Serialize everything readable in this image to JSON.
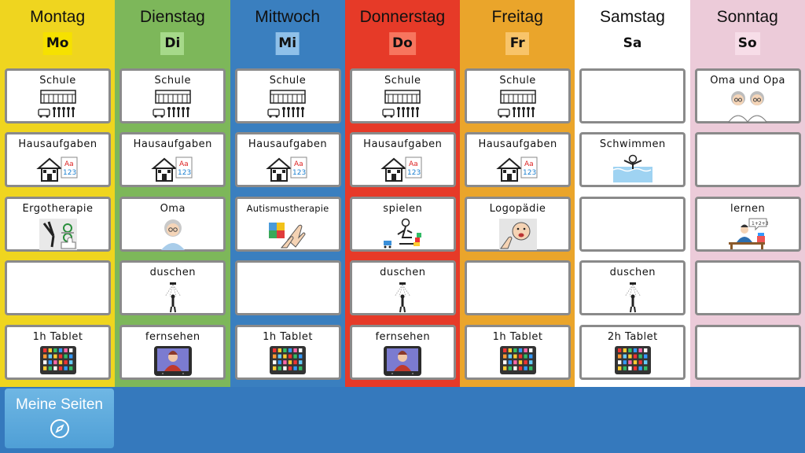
{
  "days": [
    {
      "name": "Montag",
      "abbr": "Mo",
      "bg": "#efd51f",
      "abbr_bg": "#f6e100",
      "cells": [
        {
          "label": "Schule",
          "icon": "school-bus-icon"
        },
        {
          "label": "Hausaufgaben",
          "icon": "homework-icon"
        },
        {
          "label": "Ergotherapie",
          "icon": "occupational-therapy-icon"
        },
        {
          "label": "",
          "icon": ""
        },
        {
          "label": "1h Tablet",
          "icon": "tablet-icon"
        }
      ]
    },
    {
      "name": "Dienstag",
      "abbr": "Di",
      "bg": "#7db75a",
      "abbr_bg": "#a6d98a",
      "cells": [
        {
          "label": "Schule",
          "icon": "school-bus-icon"
        },
        {
          "label": "Hausaufgaben",
          "icon": "homework-icon"
        },
        {
          "label": "Oma",
          "icon": "grandmother-icon"
        },
        {
          "label": "duschen",
          "icon": "shower-icon"
        },
        {
          "label": "fernsehen",
          "icon": "tv-icon"
        }
      ]
    },
    {
      "name": "Mittwoch",
      "abbr": "Mi",
      "bg": "#3a7fbf",
      "abbr_bg": "#8fc0e9",
      "cells": [
        {
          "label": "Schule",
          "icon": "school-bus-icon"
        },
        {
          "label": "Hausaufgaben",
          "icon": "homework-icon"
        },
        {
          "label": "Autismustherapie",
          "icon": "puzzle-hands-icon"
        },
        {
          "label": "",
          "icon": ""
        },
        {
          "label": "1h Tablet",
          "icon": "tablet-icon"
        }
      ]
    },
    {
      "name": "Donnerstag",
      "abbr": "Do",
      "bg": "#e63a28",
      "abbr_bg": "#f7755e",
      "cells": [
        {
          "label": "Schule",
          "icon": "school-bus-icon"
        },
        {
          "label": "Hausaufgaben",
          "icon": "homework-icon"
        },
        {
          "label": "spielen",
          "icon": "playing-child-icon"
        },
        {
          "label": "duschen",
          "icon": "shower-icon"
        },
        {
          "label": "fernsehen",
          "icon": "tv-icon"
        }
      ]
    },
    {
      "name": "Freitag",
      "abbr": "Fr",
      "bg": "#eaa52b",
      "abbr_bg": "#f8c46a",
      "cells": [
        {
          "label": "Schule",
          "icon": "school-bus-icon"
        },
        {
          "label": "Hausaufgaben",
          "icon": "homework-icon"
        },
        {
          "label": "Logopädie",
          "icon": "speech-therapy-icon"
        },
        {
          "label": "",
          "icon": ""
        },
        {
          "label": "1h Tablet",
          "icon": "tablet-icon"
        }
      ]
    },
    {
      "name": "Samstag",
      "abbr": "Sa",
      "bg": "#ffffff",
      "abbr_bg": "#ffffff",
      "cells": [
        {
          "label": "",
          "icon": ""
        },
        {
          "label": "Schwimmen",
          "icon": "swimming-icon"
        },
        {
          "label": "",
          "icon": ""
        },
        {
          "label": "duschen",
          "icon": "shower-icon"
        },
        {
          "label": "2h Tablet",
          "icon": "tablet-icon"
        }
      ]
    },
    {
      "name": "Sonntag",
      "abbr": "So",
      "bg": "#eccbd9",
      "abbr_bg": "#f7dde8",
      "cells": [
        {
          "label": "Oma und Opa",
          "icon": "grandparents-icon"
        },
        {
          "label": "",
          "icon": ""
        },
        {
          "label": "lernen",
          "icon": "learning-icon"
        },
        {
          "label": "",
          "icon": ""
        },
        {
          "label": "",
          "icon": ""
        }
      ]
    }
  ],
  "bottom_bar": {
    "meine_seiten_label": "Meine Seiten",
    "meine_seiten_icon": "compass-icon",
    "bg": "#3579bd"
  }
}
